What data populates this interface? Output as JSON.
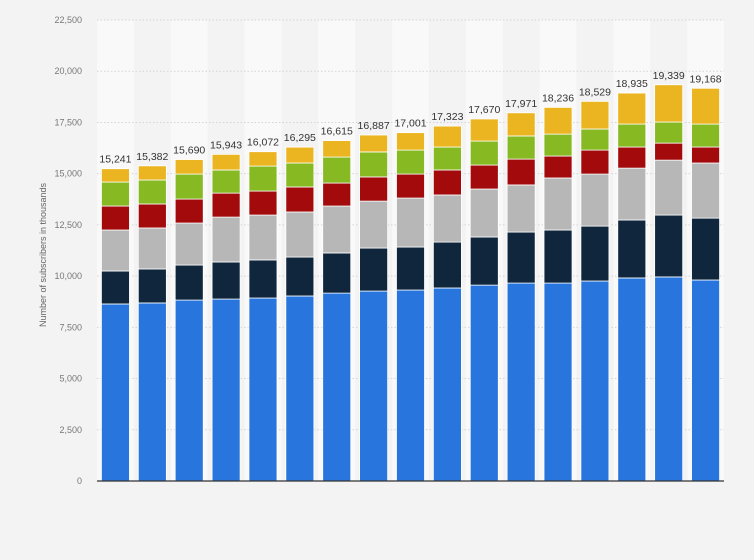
{
  "chart_data": {
    "type": "bar",
    "stacked": true,
    "title": "",
    "xlabel": "",
    "ylabel": "Number of subscribers in thousands",
    "ylim": [
      0,
      22500
    ],
    "yticks": [
      0,
      2500,
      5000,
      7500,
      10000,
      12500,
      15000,
      17500,
      20000,
      22500
    ],
    "ytick_labels": [
      "0",
      "2,500",
      "5,000",
      "7,500",
      "10,000",
      "12,500",
      "15,000",
      "17,500",
      "20,000",
      "22,500"
    ],
    "grid": true,
    "legend": "none",
    "categories": [
      "",
      "",
      "",
      "",
      "",
      "",
      "",
      "",
      "",
      "",
      "",
      "",
      "",
      "",
      "",
      "",
      ""
    ],
    "totals": [
      15241,
      15382,
      15690,
      15943,
      16072,
      16295,
      16615,
      16887,
      17001,
      17323,
      17670,
      17971,
      18236,
      18529,
      18935,
      19339,
      19168
    ],
    "total_labels": [
      "15,241",
      "15,382",
      "15,690",
      "15,943",
      "16,072",
      "16,295",
      "16,615",
      "16,887",
      "17,001",
      "17,323",
      "17,670",
      "17,971",
      "18,236",
      "18,529",
      "18,935",
      "19,339",
      "19,168"
    ],
    "series": [
      {
        "color": "#2876dd",
        "values": [
          8640,
          8690,
          8830,
          8880,
          8930,
          9030,
          9170,
          9270,
          9320,
          9420,
          9560,
          9660,
          9660,
          9760,
          9910,
          9960,
          9810
        ]
      },
      {
        "color": "#10263c",
        "values": [
          1610,
          1660,
          1710,
          1810,
          1860,
          1900,
          1960,
          2100,
          2100,
          2240,
          2350,
          2490,
          2590,
          2680,
          2830,
          3020,
          3020
        ]
      },
      {
        "color": "#b7b7b7",
        "values": [
          2000,
          2000,
          2050,
          2190,
          2190,
          2200,
          2290,
          2290,
          2390,
          2300,
          2340,
          2300,
          2540,
          2540,
          2530,
          2680,
          2690
        ]
      },
      {
        "color": "#a20a0b",
        "values": [
          1170,
          1170,
          1170,
          1170,
          1170,
          1220,
          1120,
          1180,
          1170,
          1220,
          1170,
          1260,
          1070,
          1170,
          1030,
          830,
          780
        ]
      },
      {
        "color": "#86b922",
        "values": [
          1170,
          1170,
          1220,
          1130,
          1220,
          1170,
          1270,
          1220,
          1170,
          1120,
          1170,
          1130,
          1070,
          1030,
          1120,
          1030,
          1120
        ]
      },
      {
        "color": "#ebb522",
        "values": [
          651,
          692,
          710,
          763,
          702,
          775,
          805,
          827,
          851,
          1023,
          1080,
          1131,
          1306,
          1349,
          1515,
          1819,
          1748
        ]
      }
    ]
  }
}
